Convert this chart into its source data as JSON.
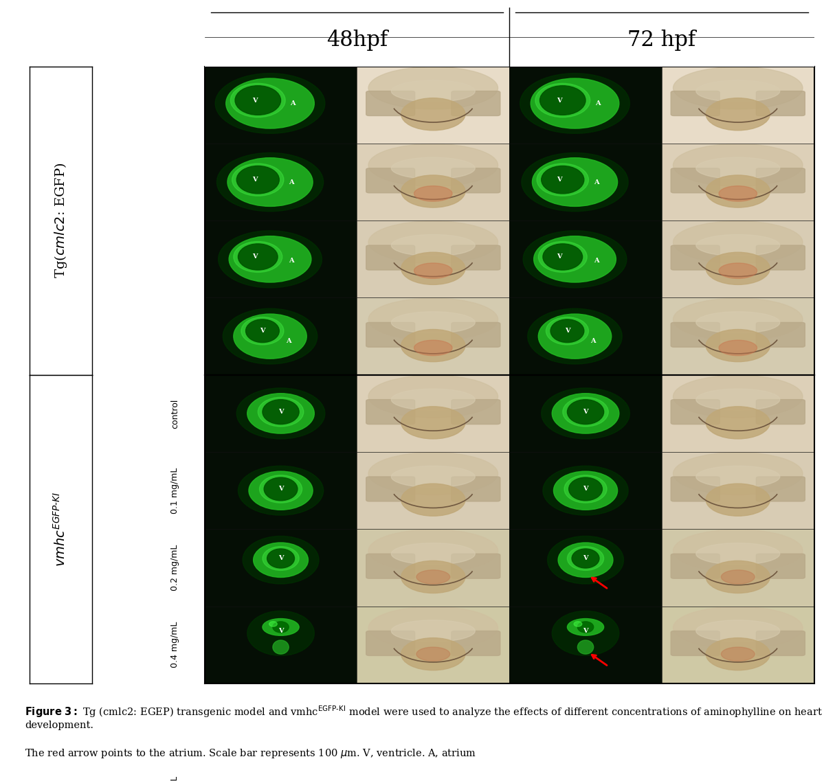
{
  "fig_width": 12.15,
  "fig_height": 11.37,
  "bg_color": "#ffffff",
  "col_header_48": "48hpf",
  "col_header_72": "72 hpf",
  "col_header_fontsize": 22,
  "row_group1_label": "Tg(cmlc2: EGFP)",
  "row_group2_label": "vmhc$^{EGFP-KI}$",
  "row_labels": [
    "control",
    "0.1 mg/mL",
    "0.2 mg/mL",
    "0.4 mg/mL"
  ],
  "caption_line1": "Tg (cmlc2: EGEP) transgenic model and vmhc",
  "caption_superscript": "EGFP-KI",
  "caption_line1_end": " model were used to analyze the effects of different concentrations of aminophylline on heart development.",
  "caption_line2": "The red arrow points to the atrium. Scale bar represents 100 μm. V, ventricle. A, atrium",
  "caption_fontsize": 11,
  "label_fontsize": 9,
  "group_label_fontsize": 14
}
